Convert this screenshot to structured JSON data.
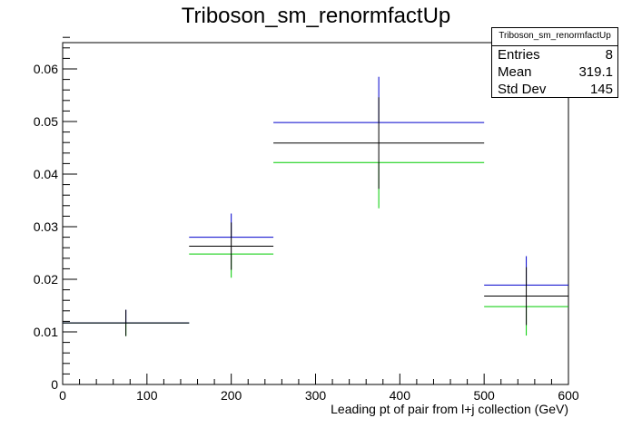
{
  "chart_data": {
    "type": "histogram",
    "title": "Triboson_sm_renormfactUp",
    "xlabel": "Leading pt of pair from l+j collection (GeV)",
    "ylabel": "",
    "xlim": [
      0,
      600
    ],
    "ylim": [
      0,
      0.065
    ],
    "x_ticks": [
      0,
      100,
      200,
      300,
      400,
      500,
      600
    ],
    "y_ticks": [
      0,
      0.01,
      0.02,
      0.03,
      0.04,
      0.05,
      0.06
    ],
    "bins": [
      {
        "low": 0,
        "high": 150,
        "center": 75,
        "value": 0.0117,
        "error": 0.0025,
        "up": 0.0117,
        "down": 0.0117
      },
      {
        "low": 150,
        "high": 250,
        "center": 200,
        "value": 0.0263,
        "error": 0.0045,
        "up": 0.028,
        "down": 0.0248
      },
      {
        "low": 250,
        "high": 500,
        "center": 375,
        "value": 0.0459,
        "error": 0.0087,
        "up": 0.0498,
        "down": 0.0422
      },
      {
        "low": 500,
        "high": 600,
        "center": 550,
        "value": 0.0168,
        "error": 0.0055,
        "up": 0.0189,
        "down": 0.0148
      }
    ],
    "colors": {
      "nominal": "#000000",
      "up": "#0000cc",
      "down": "#00cc00"
    },
    "grid": false,
    "legend": "none"
  },
  "stats": {
    "name": "Triboson_sm_renormfactUp",
    "rows": [
      {
        "label": "Entries",
        "value": "8"
      },
      {
        "label": "Mean",
        "value": "319.1"
      },
      {
        "label": "Std Dev",
        "value": "145"
      }
    ]
  }
}
